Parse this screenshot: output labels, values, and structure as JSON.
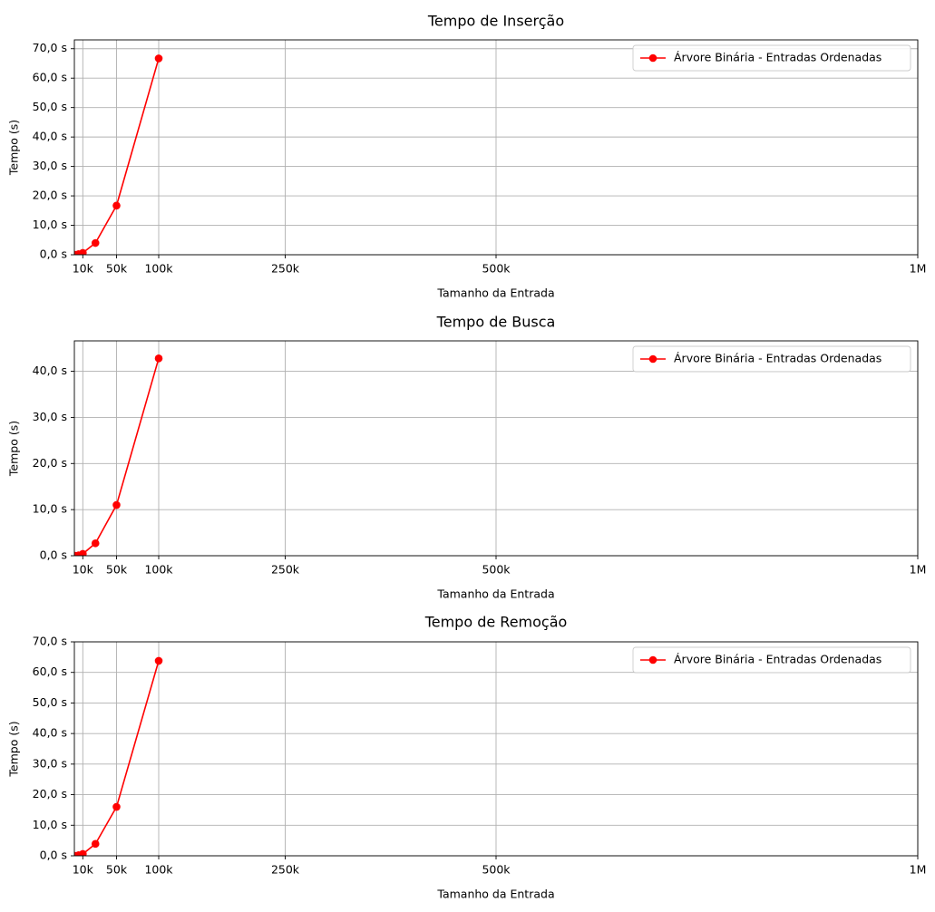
{
  "chart_data": [
    {
      "type": "line",
      "title": "Tempo de Inserção",
      "xlabel": "Tamanho da Entrada",
      "ylabel": "Tempo (s)",
      "x_ticks": [
        {
          "value": 10000,
          "label": "10k"
        },
        {
          "value": 50000,
          "label": "50k"
        },
        {
          "value": 100000,
          "label": "100k"
        },
        {
          "value": 250000,
          "label": "250k"
        },
        {
          "value": 500000,
          "label": "500k"
        },
        {
          "value": 1000000,
          "label": "1M"
        }
      ],
      "y_ticks": [
        {
          "value": 0,
          "label": "0,0 s"
        },
        {
          "value": 10,
          "label": "10,0 s"
        },
        {
          "value": 20,
          "label": "20,0 s"
        },
        {
          "value": 30,
          "label": "30,0 s"
        },
        {
          "value": 40,
          "label": "40,0 s"
        },
        {
          "value": 50,
          "label": "50,0 s"
        },
        {
          "value": 60,
          "label": "60,0 s"
        },
        {
          "value": 70,
          "label": "70,0 s"
        }
      ],
      "xlim": [
        0,
        1000000
      ],
      "ylim": [
        0,
        73
      ],
      "grid": true,
      "legend_position": "upper right",
      "series": [
        {
          "name": "Árvore Binária - Entradas Ordenadas",
          "color": "#ff0000",
          "marker": "circle",
          "x": [
            1000,
            5000,
            10000,
            25000,
            50000,
            100000
          ],
          "y": [
            0.0,
            0.2,
            0.65,
            4.0,
            16.7,
            66.7
          ]
        }
      ]
    },
    {
      "type": "line",
      "title": "Tempo de Busca",
      "xlabel": "Tamanho da Entrada",
      "ylabel": "Tempo (s)",
      "x_ticks": [
        {
          "value": 10000,
          "label": "10k"
        },
        {
          "value": 50000,
          "label": "50k"
        },
        {
          "value": 100000,
          "label": "100k"
        },
        {
          "value": 250000,
          "label": "250k"
        },
        {
          "value": 500000,
          "label": "500k"
        },
        {
          "value": 1000000,
          "label": "1M"
        }
      ],
      "y_ticks": [
        {
          "value": 0,
          "label": "0,0 s"
        },
        {
          "value": 10,
          "label": "10,0 s"
        },
        {
          "value": 20,
          "label": "20,0 s"
        },
        {
          "value": 30,
          "label": "30,0 s"
        },
        {
          "value": 40,
          "label": "40,0 s"
        }
      ],
      "xlim": [
        0,
        1000000
      ],
      "ylim": [
        0,
        46.6
      ],
      "grid": true,
      "legend_position": "upper right",
      "series": [
        {
          "name": "Árvore Binária - Entradas Ordenadas",
          "color": "#ff0000",
          "marker": "circle",
          "x": [
            1000,
            5000,
            10000,
            25000,
            50000,
            100000
          ],
          "y": [
            0.0,
            0.1,
            0.4,
            2.7,
            11.0,
            42.8
          ]
        }
      ]
    },
    {
      "type": "line",
      "title": "Tempo de Remoção",
      "xlabel": "Tamanho da Entrada",
      "ylabel": "Tempo (s)",
      "x_ticks": [
        {
          "value": 10000,
          "label": "10k"
        },
        {
          "value": 50000,
          "label": "50k"
        },
        {
          "value": 100000,
          "label": "100k"
        },
        {
          "value": 250000,
          "label": "250k"
        },
        {
          "value": 500000,
          "label": "500k"
        },
        {
          "value": 1000000,
          "label": "1M"
        }
      ],
      "y_ticks": [
        {
          "value": 0,
          "label": "0,0 s"
        },
        {
          "value": 10,
          "label": "10,0 s"
        },
        {
          "value": 20,
          "label": "20,0 s"
        },
        {
          "value": 30,
          "label": "30,0 s"
        },
        {
          "value": 40,
          "label": "40,0 s"
        },
        {
          "value": 50,
          "label": "50,0 s"
        },
        {
          "value": 60,
          "label": "60,0 s"
        },
        {
          "value": 70,
          "label": "70,0 s"
        }
      ],
      "xlim": [
        0,
        1000000
      ],
      "ylim": [
        0,
        70
      ],
      "grid": true,
      "legend_position": "upper right",
      "series": [
        {
          "name": "Árvore Binária - Entradas Ordenadas",
          "color": "#ff0000",
          "marker": "circle",
          "x": [
            1000,
            5000,
            10000,
            25000,
            50000,
            100000
          ],
          "y": [
            0.0,
            0.2,
            0.6,
            3.9,
            16.0,
            63.8
          ]
        }
      ]
    }
  ]
}
